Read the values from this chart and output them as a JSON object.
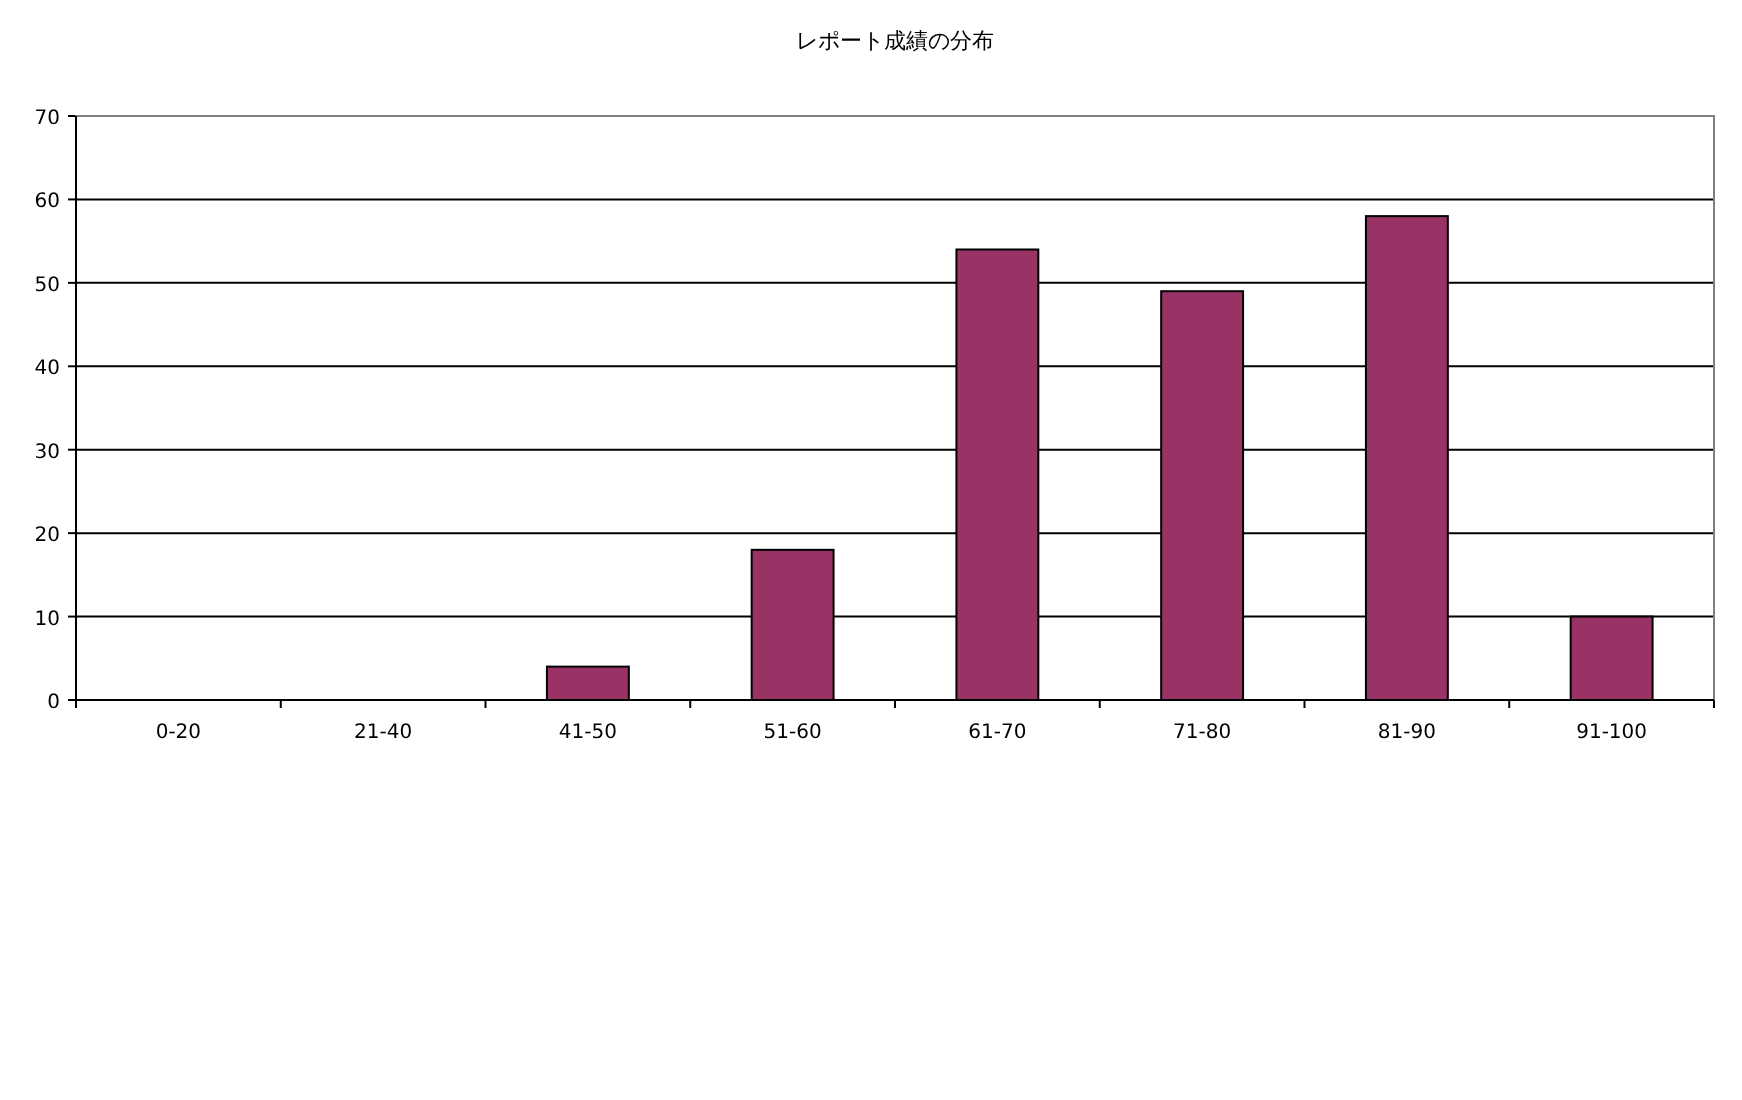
{
  "chart_data": {
    "type": "bar",
    "title": "レポート成績の分布",
    "categories": [
      "0-20",
      "21-40",
      "41-50",
      "51-60",
      "61-70",
      "71-80",
      "81-90",
      "91-100"
    ],
    "values": [
      0,
      0,
      4,
      18,
      54,
      49,
      58,
      10
    ],
    "color": "#993366",
    "ylim": [
      0,
      70
    ],
    "yticks": [
      0,
      10,
      20,
      30,
      40,
      50,
      60,
      70
    ],
    "grid": "y"
  }
}
